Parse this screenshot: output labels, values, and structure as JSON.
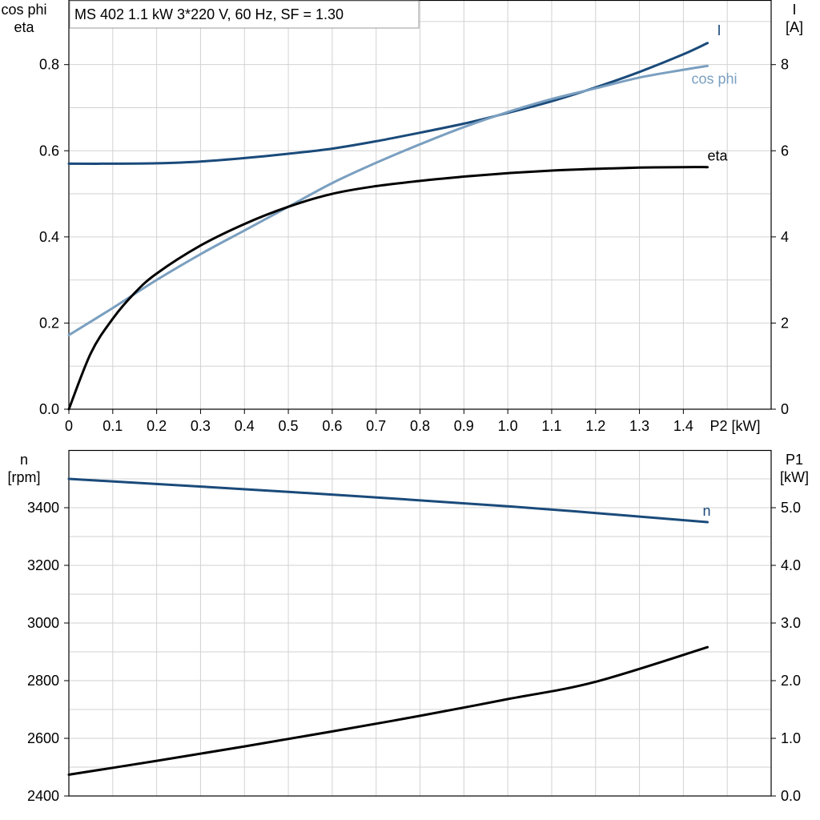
{
  "chart_data": [
    {
      "type": "line",
      "title": "MS 402   1.1 kW   3*220 V, 60 Hz, SF = 1.30",
      "xlabel": "P2 [kW]",
      "xlim": [
        0,
        1.6
      ],
      "x_ticks": [
        "0",
        "0.1",
        "0.2",
        "0.3",
        "0.4",
        "0.5",
        "0.6",
        "0.7",
        "0.8",
        "0.9",
        "1.0",
        "1.1",
        "1.2",
        "1.3",
        "1.4"
      ],
      "ylabel_left": [
        "cos phi",
        "eta"
      ],
      "ylim_left": [
        0,
        0.95
      ],
      "y_ticks_left": [
        "0.0",
        "0.2",
        "0.4",
        "0.6",
        "0.8"
      ],
      "ylabel_right": [
        "I",
        "[A]"
      ],
      "ylim_right": [
        0,
        9.5
      ],
      "y_ticks_right": [
        "0",
        "2",
        "4",
        "6",
        "8"
      ],
      "grid": true,
      "series": [
        {
          "name": "I",
          "axis": "right",
          "color": "#1a4a7a",
          "x": [
            0,
            0.1,
            0.2,
            0.3,
            0.4,
            0.5,
            0.6,
            0.7,
            0.8,
            0.9,
            1.0,
            1.1,
            1.2,
            1.3,
            1.4,
            1.455
          ],
          "y": [
            5.7,
            5.7,
            5.71,
            5.75,
            5.83,
            5.93,
            6.05,
            6.22,
            6.42,
            6.63,
            6.88,
            7.15,
            7.47,
            7.83,
            8.24,
            8.5
          ]
        },
        {
          "name": "cos phi",
          "axis": "left",
          "color": "#7a9fc0",
          "x": [
            0,
            0.1,
            0.2,
            0.3,
            0.4,
            0.5,
            0.6,
            0.7,
            0.8,
            0.9,
            1.0,
            1.1,
            1.2,
            1.3,
            1.4,
            1.455
          ],
          "y": [
            0.172,
            0.235,
            0.3,
            0.36,
            0.415,
            0.47,
            0.525,
            0.572,
            0.615,
            0.655,
            0.69,
            0.72,
            0.745,
            0.77,
            0.788,
            0.797
          ]
        },
        {
          "name": "eta",
          "axis": "left",
          "color": "#000000",
          "x": [
            0,
            0.05,
            0.1,
            0.15,
            0.2,
            0.3,
            0.4,
            0.5,
            0.6,
            0.7,
            0.8,
            0.9,
            1.0,
            1.1,
            1.2,
            1.3,
            1.4,
            1.455
          ],
          "y": [
            0.0,
            0.13,
            0.21,
            0.27,
            0.315,
            0.38,
            0.43,
            0.47,
            0.5,
            0.518,
            0.53,
            0.54,
            0.548,
            0.554,
            0.558,
            0.561,
            0.562,
            0.562
          ]
        }
      ]
    },
    {
      "type": "line",
      "xlim": [
        0,
        1.6
      ],
      "ylabel_left": [
        "n",
        "[rpm]"
      ],
      "ylim_left": [
        2400,
        3600
      ],
      "y_ticks_left": [
        "2400",
        "2600",
        "2800",
        "3000",
        "3200",
        "3400"
      ],
      "ylabel_right": [
        "P1",
        "[kW]"
      ],
      "ylim_right": [
        0,
        6
      ],
      "y_ticks_right": [
        "0.0",
        "1.0",
        "2.0",
        "3.0",
        "4.0",
        "5.0"
      ],
      "grid": true,
      "series": [
        {
          "name": "n",
          "axis": "left",
          "color": "#1a4a7a",
          "x": [
            0,
            0.5,
            1.0,
            1.455
          ],
          "y": [
            3500,
            3455,
            3405,
            3350
          ]
        },
        {
          "axis": "right",
          "color": "#000000",
          "x": [
            0,
            0.2,
            0.4,
            0.6,
            0.8,
            1.0,
            1.2,
            1.455
          ],
          "y": [
            0.37,
            0.61,
            0.86,
            1.12,
            1.39,
            1.68,
            1.98,
            2.58
          ]
        }
      ]
    }
  ]
}
